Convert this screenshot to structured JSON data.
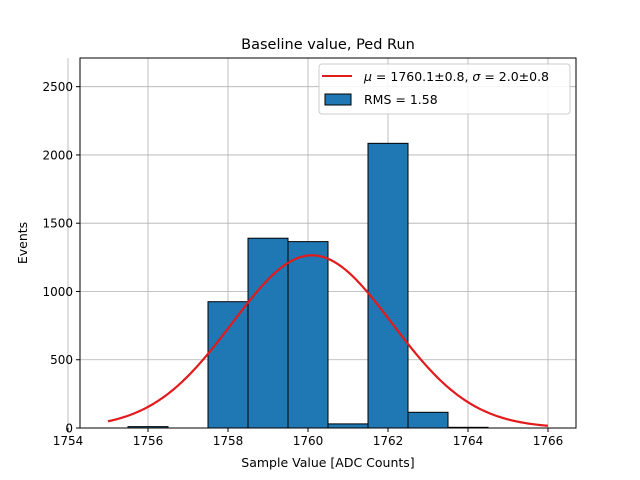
{
  "chart_data": {
    "type": "bar",
    "title": "Baseline value, Ped Run",
    "xlabel": "Sample Value [ADC Counts]",
    "ylabel": "Events",
    "xlim": [
      1754.3,
      1766.7
    ],
    "ylim": [
      0,
      2710
    ],
    "grid": true,
    "legend_position": "top-right",
    "x_ticks": [
      1754,
      1756,
      1758,
      1760,
      1762,
      1764,
      1766
    ],
    "y_ticks": [
      0,
      500,
      1000,
      1500,
      2000,
      2500
    ],
    "bin_edges": [
      1755.5,
      1756.5,
      1757.5,
      1758.5,
      1759.5,
      1760.5,
      1761.5,
      1762.5,
      1763.5,
      1764.5
    ],
    "values": [
      10,
      0,
      925,
      1390,
      1365,
      30,
      2085,
      115,
      5
    ],
    "fit": {
      "mu": 1760.1,
      "sigma": 2.0,
      "amplitude": 1265,
      "x_range": [
        1755.0,
        1766.0
      ]
    },
    "series": [
      {
        "name": "$\\mu = 1760.1{\\pm}0.8$, $\\sigma = 2.0{\\pm}0.8$",
        "legend_mu": "μ",
        "legend_sigma": "σ",
        "legend_mu_text": " = 1760.1±0.8, ",
        "legend_sigma_text": " = 2.0±0.8",
        "kind": "line"
      },
      {
        "name": "RMS = 1.58",
        "kind": "bar"
      }
    ],
    "colors": {
      "bar_fill": "#1f77b4",
      "bar_edge": "#000000",
      "fit_line": "#e31a1c",
      "grid": "#b0b0b0"
    }
  }
}
